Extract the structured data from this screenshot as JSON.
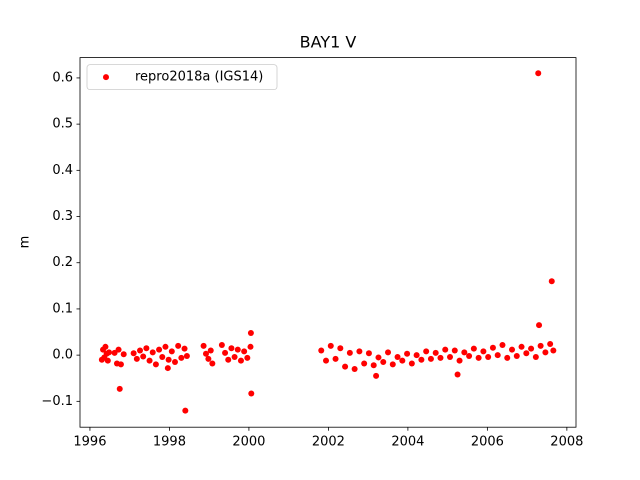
{
  "chart_data": {
    "type": "scatter",
    "title": "BAY1 V",
    "y_label": "m",
    "legend": "upper left",
    "xlim": [
      1995.75,
      2008.23
    ],
    "xticks": [
      1996,
      1998,
      2000,
      2002,
      2004,
      2006,
      2008
    ],
    "ylim": [
      -0.156,
      0.644
    ],
    "yticks": [
      {
        "value": -0.1,
        "label": "−0.1"
      },
      {
        "value": 0,
        "label": "0.0"
      },
      0.1,
      0.2,
      0.3,
      0.4,
      0.5,
      0.6
    ],
    "grid": false,
    "x": [
      1996.3,
      1996.33,
      1996.36,
      1996.39,
      1996.42,
      1996.45,
      1996.48,
      1996.62,
      1996.68,
      1996.72,
      1996.78,
      1996.85,
      1996.75,
      1997.1,
      1997.18,
      1997.26,
      1997.34,
      1997.42,
      1997.5,
      1997.58,
      1997.66,
      1997.74,
      1997.82,
      1997.9,
      1997.98,
      1998.06,
      1998.14,
      1998.22,
      1998.3,
      1998.38,
      1998.44,
      1997.96,
      1998.4,
      1998.86,
      1998.92,
      1998.98,
      1999.04,
      1999.08,
      1999.32,
      1999.4,
      1999.48,
      1999.56,
      1999.64,
      1999.72,
      1999.8,
      1999.88,
      1999.96,
      2000.04,
      2000.05,
      2000.06,
      2001.82,
      2001.94,
      2002.06,
      2002.18,
      2002.3,
      2002.42,
      2002.54,
      2002.66,
      2002.78,
      2002.9,
      2003.02,
      2003.14,
      2003.26,
      2003.38,
      2003.5,
      2003.62,
      2003.74,
      2003.86,
      2003.98,
      2003.2,
      2004.1,
      2004.22,
      2004.34,
      2004.46,
      2004.58,
      2004.7,
      2004.82,
      2004.94,
      2005.06,
      2005.18,
      2005.3,
      2005.42,
      2005.54,
      2005.66,
      2005.78,
      2005.9,
      2005.25,
      2006.02,
      2006.14,
      2006.26,
      2006.38,
      2006.5,
      2006.62,
      2006.74,
      2006.86,
      2006.98,
      2007.1,
      2007.22,
      2007.34,
      2007.46,
      2007.58,
      2007.66,
      2007.3,
      2007.28,
      2007.62
    ],
    "series": [
      {
        "name": "repro2018a (IGS14)",
        "color": "#ff0000",
        "values": [
          -0.01,
          0.012,
          -0.005,
          0.018,
          0.003,
          -0.012,
          0.006,
          0.005,
          -0.018,
          0.012,
          -0.02,
          0.002,
          -0.073,
          0.004,
          -0.008,
          0.01,
          -0.003,
          0.015,
          -0.012,
          0.006,
          -0.02,
          0.012,
          -0.004,
          0.018,
          -0.01,
          0.008,
          -0.015,
          0.02,
          -0.006,
          0.014,
          -0.002,
          -0.028,
          -0.12,
          0.02,
          0.003,
          -0.008,
          0.01,
          -0.018,
          0.022,
          0.005,
          -0.01,
          0.015,
          -0.004,
          0.012,
          -0.012,
          0.008,
          -0.006,
          0.018,
          0.048,
          -0.083,
          0.01,
          -0.012,
          0.02,
          -0.008,
          0.015,
          -0.025,
          0.005,
          -0.03,
          0.008,
          -0.018,
          0.004,
          -0.022,
          -0.005,
          -0.015,
          0.006,
          -0.02,
          -0.004,
          -0.012,
          0.003,
          -0.045,
          -0.018,
          0.0,
          -0.01,
          0.008,
          -0.008,
          0.005,
          -0.006,
          0.012,
          -0.004,
          0.01,
          -0.012,
          0.006,
          -0.002,
          0.014,
          -0.006,
          0.008,
          -0.042,
          -0.004,
          0.016,
          0.0,
          0.022,
          -0.006,
          0.012,
          -0.002,
          0.018,
          0.004,
          0.014,
          -0.004,
          0.02,
          0.006,
          0.024,
          0.01,
          0.065,
          0.61,
          0.16
        ]
      }
    ]
  }
}
